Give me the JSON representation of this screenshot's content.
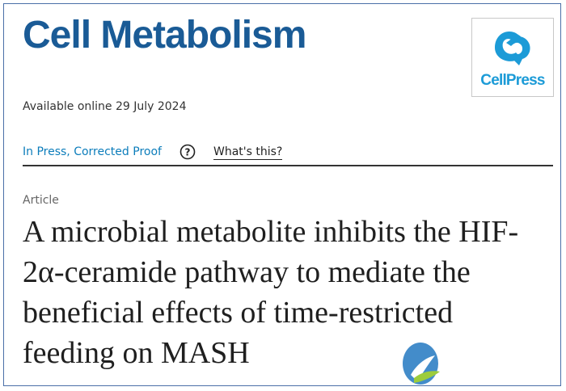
{
  "journal": {
    "title": "Cell Metabolism"
  },
  "publisher": {
    "logo_text": "CellPress",
    "color": "#1c9bd7"
  },
  "availability": {
    "text": "Available online 29 July 2024"
  },
  "status": {
    "label": "In Press, Corrected Proof",
    "help_icon": "question-circle-icon",
    "whats_this": "What's this?"
  },
  "article": {
    "type": "Article",
    "title": "A microbial metabolite inhibits the HIF-2α-ceramide pathway to mediate the beneficial effects of time-restricted feeding on MASH"
  },
  "colors": {
    "journal_blue": "#1a5b96",
    "link_blue": "#0c7dbb"
  }
}
